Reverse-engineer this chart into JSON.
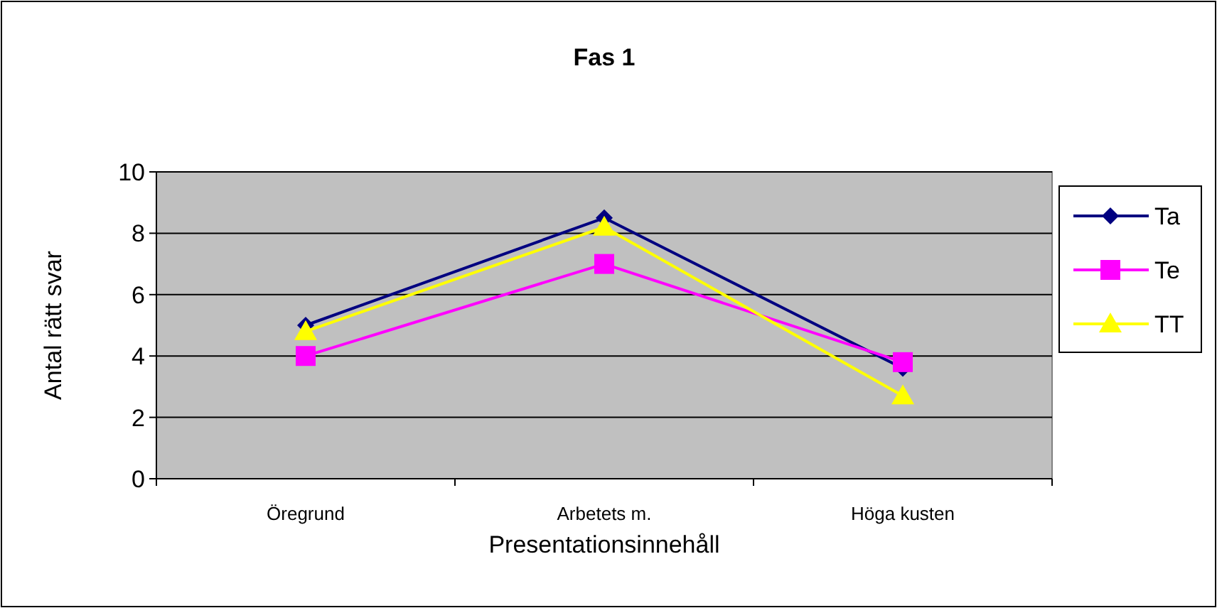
{
  "chart_data": {
    "type": "line",
    "title": "Fas 1",
    "xlabel": "Presentationsinnehåll",
    "ylabel": "Antal rätt svar",
    "categories": [
      "Öregrund",
      "Arbetets m.",
      "Höga kusten"
    ],
    "series": [
      {
        "name": "Ta",
        "color": "#000080",
        "marker": "diamond",
        "values": [
          5,
          8.5,
          3.6
        ]
      },
      {
        "name": "Te",
        "color": "#ff00ff",
        "marker": "square",
        "values": [
          4,
          7,
          3.8
        ]
      },
      {
        "name": "TT",
        "color": "#ffff00",
        "marker": "triangle",
        "values": [
          4.8,
          8.2,
          2.7
        ]
      }
    ],
    "ylim": [
      0,
      10
    ],
    "yticks": [
      0,
      2,
      4,
      6,
      8,
      10
    ],
    "grid": "y",
    "legend": "right"
  }
}
